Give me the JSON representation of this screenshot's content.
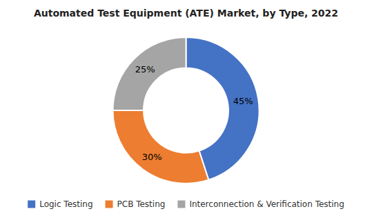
{
  "chart_data": {
    "type": "donut",
    "title": "Automated Test Equipment (ATE) Market, by Type, 2022",
    "categories": [
      "Logic Testing",
      "PCB Testing",
      "Interconnection & Verification Testing"
    ],
    "values": [
      45,
      30,
      25
    ],
    "value_labels": [
      "45%",
      "30%",
      "25%"
    ],
    "colors": [
      "#4472C4",
      "#ED7D31",
      "#A5A5A5"
    ],
    "data_labels": true,
    "legend": "bottom"
  }
}
